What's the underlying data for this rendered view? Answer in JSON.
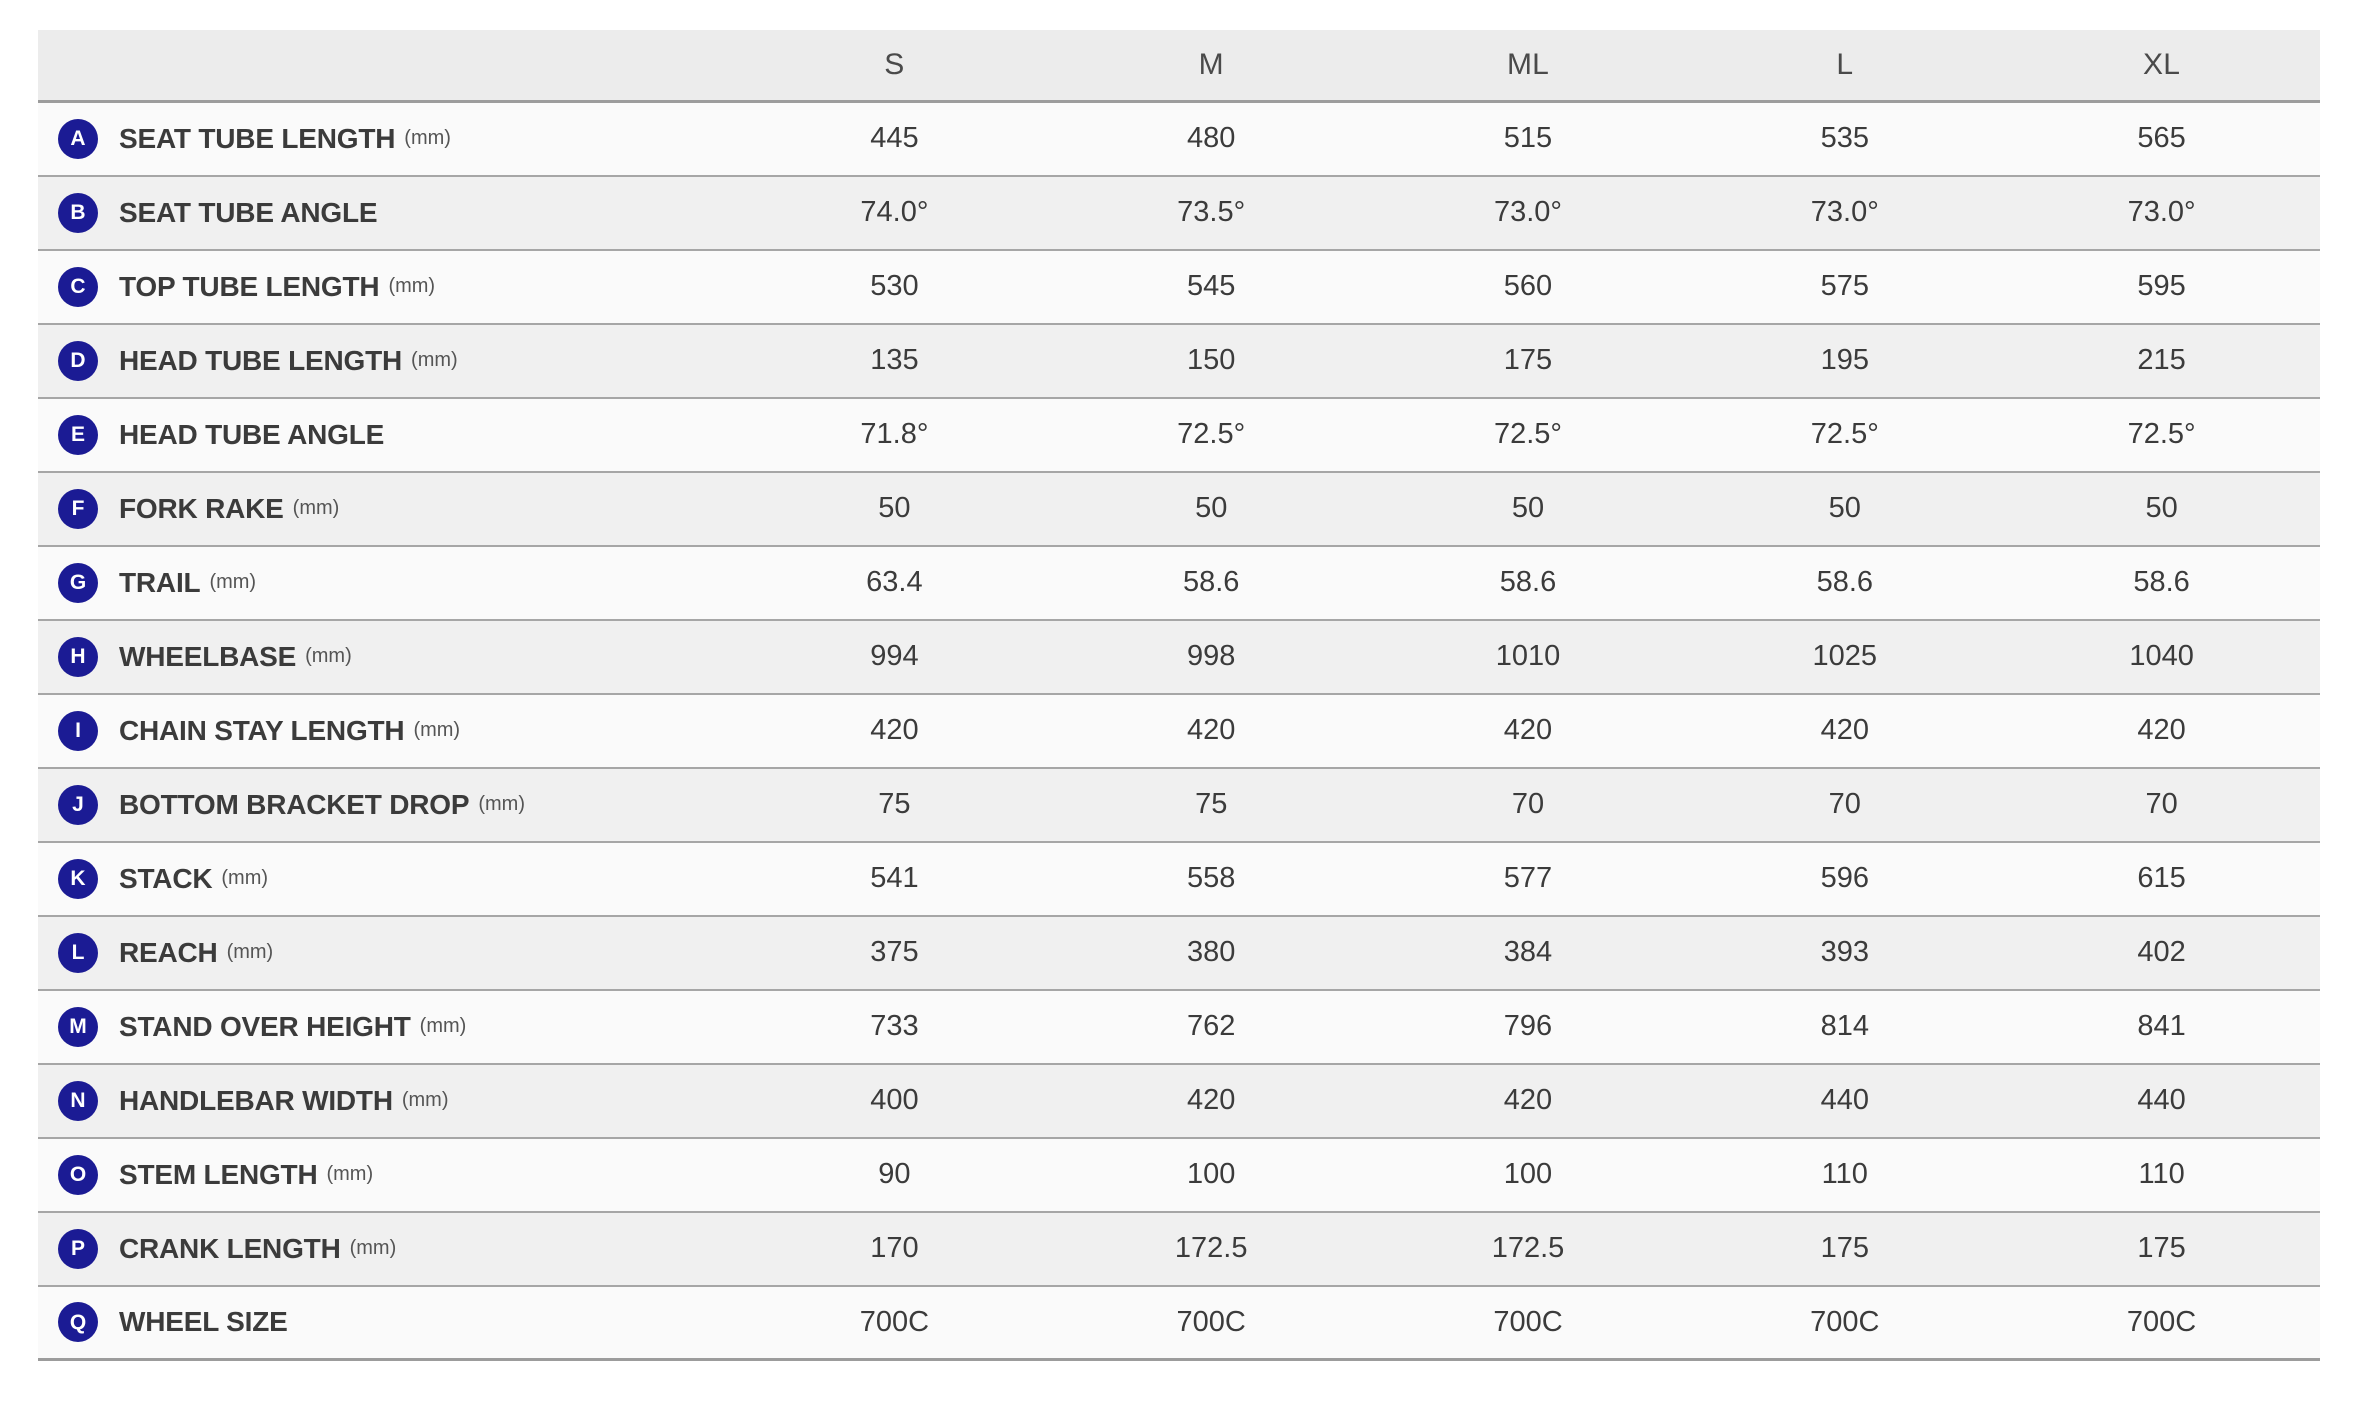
{
  "colors": {
    "badge_navy": "#1b1b94",
    "header_bg": "#ececec",
    "row_light": "#fafafa",
    "row_dark": "#f0f0f0",
    "divider_gray": "#a6a6a6",
    "text_dark": "#3b3b3b"
  },
  "table": {
    "corner_label": "",
    "columns": [
      "S",
      "M",
      "ML",
      "L",
      "XL"
    ],
    "rows": [
      {
        "letter": "A",
        "label": "SEAT TUBE LENGTH",
        "unit": "(mm)",
        "values": [
          "445",
          "480",
          "515",
          "535",
          "565"
        ]
      },
      {
        "letter": "B",
        "label": "SEAT TUBE ANGLE",
        "unit": "",
        "values": [
          "74.0°",
          "73.5°",
          "73.0°",
          "73.0°",
          "73.0°"
        ]
      },
      {
        "letter": "C",
        "label": "TOP TUBE LENGTH",
        "unit": "(mm)",
        "values": [
          "530",
          "545",
          "560",
          "575",
          "595"
        ]
      },
      {
        "letter": "D",
        "label": "HEAD TUBE LENGTH",
        "unit": "(mm)",
        "values": [
          "135",
          "150",
          "175",
          "195",
          "215"
        ]
      },
      {
        "letter": "E",
        "label": "HEAD TUBE ANGLE",
        "unit": "",
        "values": [
          "71.8°",
          "72.5°",
          "72.5°",
          "72.5°",
          "72.5°"
        ]
      },
      {
        "letter": "F",
        "label": "FORK RAKE",
        "unit": "(mm)",
        "values": [
          "50",
          "50",
          "50",
          "50",
          "50"
        ]
      },
      {
        "letter": "G",
        "label": "TRAIL",
        "unit": "(mm)",
        "values": [
          "63.4",
          "58.6",
          "58.6",
          "58.6",
          "58.6"
        ]
      },
      {
        "letter": "H",
        "label": "WHEELBASE",
        "unit": "(mm)",
        "values": [
          "994",
          "998",
          "1010",
          "1025",
          "1040"
        ]
      },
      {
        "letter": "I",
        "label": "CHAIN STAY LENGTH",
        "unit": "(mm)",
        "values": [
          "420",
          "420",
          "420",
          "420",
          "420"
        ]
      },
      {
        "letter": "J",
        "label": "BOTTOM BRACKET DROP",
        "unit": "(mm)",
        "values": [
          "75",
          "75",
          "70",
          "70",
          "70"
        ]
      },
      {
        "letter": "K",
        "label": "STACK",
        "unit": "(mm)",
        "values": [
          "541",
          "558",
          "577",
          "596",
          "615"
        ]
      },
      {
        "letter": "L",
        "label": "REACH",
        "unit": "(mm)",
        "values": [
          "375",
          "380",
          "384",
          "393",
          "402"
        ]
      },
      {
        "letter": "M",
        "label": "STAND OVER HEIGHT",
        "unit": "(mm)",
        "values": [
          "733",
          "762",
          "796",
          "814",
          "841"
        ]
      },
      {
        "letter": "N",
        "label": "HANDLEBAR WIDTH",
        "unit": "(mm)",
        "values": [
          "400",
          "420",
          "420",
          "440",
          "440"
        ]
      },
      {
        "letter": "O",
        "label": "STEM LENGTH",
        "unit": "(mm)",
        "values": [
          "90",
          "100",
          "100",
          "110",
          "110"
        ]
      },
      {
        "letter": "P",
        "label": "CRANK LENGTH",
        "unit": "(mm)",
        "values": [
          "170",
          "172.5",
          "172.5",
          "175",
          "175"
        ]
      },
      {
        "letter": "Q",
        "label": "WHEEL SIZE",
        "unit": "",
        "values": [
          "700C",
          "700C",
          "700C",
          "700C",
          "700C"
        ]
      }
    ]
  },
  "chart_data": {
    "type": "table",
    "columns": [
      "S",
      "M",
      "ML",
      "L",
      "XL"
    ],
    "rows": [
      {
        "id": "A",
        "label": "SEAT TUBE LENGTH (mm)",
        "values": [
          445,
          480,
          515,
          535,
          565
        ]
      },
      {
        "id": "B",
        "label": "SEAT TUBE ANGLE",
        "values": [
          "74.0°",
          "73.5°",
          "73.0°",
          "73.0°",
          "73.0°"
        ]
      },
      {
        "id": "C",
        "label": "TOP TUBE LENGTH (mm)",
        "values": [
          530,
          545,
          560,
          575,
          595
        ]
      },
      {
        "id": "D",
        "label": "HEAD TUBE LENGTH (mm)",
        "values": [
          135,
          150,
          175,
          195,
          215
        ]
      },
      {
        "id": "E",
        "label": "HEAD TUBE ANGLE",
        "values": [
          "71.8°",
          "72.5°",
          "72.5°",
          "72.5°",
          "72.5°"
        ]
      },
      {
        "id": "F",
        "label": "FORK RAKE (mm)",
        "values": [
          50,
          50,
          50,
          50,
          50
        ]
      },
      {
        "id": "G",
        "label": "TRAIL (mm)",
        "values": [
          63.4,
          58.6,
          58.6,
          58.6,
          58.6
        ]
      },
      {
        "id": "H",
        "label": "WHEELBASE (mm)",
        "values": [
          994,
          998,
          1010,
          1025,
          1040
        ]
      },
      {
        "id": "I",
        "label": "CHAIN STAY LENGTH (mm)",
        "values": [
          420,
          420,
          420,
          420,
          420
        ]
      },
      {
        "id": "J",
        "label": "BOTTOM BRACKET DROP (mm)",
        "values": [
          75,
          75,
          70,
          70,
          70
        ]
      },
      {
        "id": "K",
        "label": "STACK (mm)",
        "values": [
          541,
          558,
          577,
          596,
          615
        ]
      },
      {
        "id": "L",
        "label": "REACH (mm)",
        "values": [
          375,
          380,
          384,
          393,
          402
        ]
      },
      {
        "id": "M",
        "label": "STAND OVER HEIGHT (mm)",
        "values": [
          733,
          762,
          796,
          814,
          841
        ]
      },
      {
        "id": "N",
        "label": "HANDLEBAR WIDTH (mm)",
        "values": [
          400,
          420,
          420,
          440,
          440
        ]
      },
      {
        "id": "O",
        "label": "STEM LENGTH (mm)",
        "values": [
          90,
          100,
          100,
          110,
          110
        ]
      },
      {
        "id": "P",
        "label": "CRANK LENGTH (mm)",
        "values": [
          170,
          172.5,
          172.5,
          175,
          175
        ]
      },
      {
        "id": "Q",
        "label": "WHEEL SIZE",
        "values": [
          "700C",
          "700C",
          "700C",
          "700C",
          "700C"
        ]
      }
    ]
  }
}
